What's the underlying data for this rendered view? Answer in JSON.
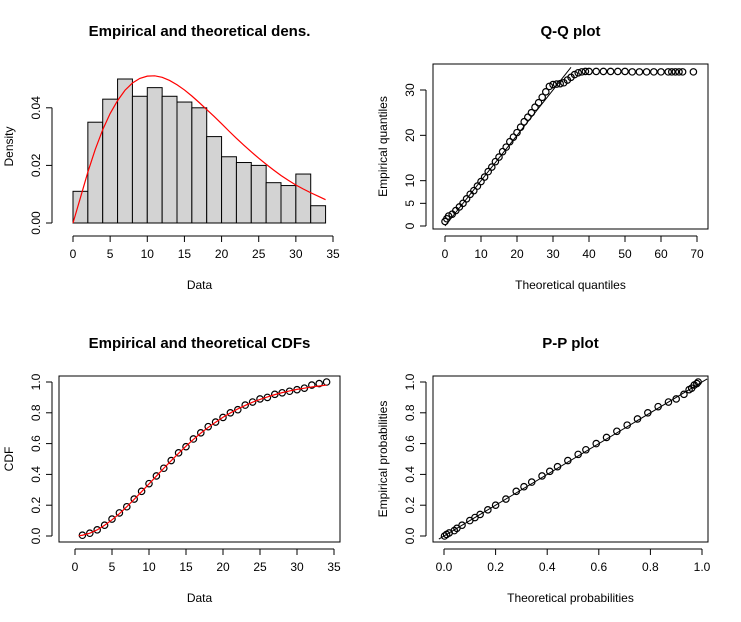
{
  "chart_data": [
    {
      "type": "bar",
      "title": "Empirical and theoretical dens.",
      "xlabel": "Data",
      "ylabel": "Density",
      "xlim": [
        0,
        35
      ],
      "ylim": [
        0,
        0.05
      ],
      "x_ticks": [
        0,
        5,
        10,
        15,
        20,
        25,
        30,
        35
      ],
      "y_ticks": [
        0.0,
        0.02,
        0.04
      ],
      "y_tick_labels": [
        "0.00",
        "0.02",
        "0.04"
      ],
      "bin_edges": [
        0,
        2,
        4,
        6,
        8,
        10,
        12,
        14,
        16,
        18,
        20,
        22,
        24,
        26,
        28,
        30,
        32,
        34
      ],
      "values": [
        0.011,
        0.035,
        0.043,
        0.05,
        0.044,
        0.047,
        0.044,
        0.042,
        0.04,
        0.03,
        0.023,
        0.021,
        0.02,
        0.014,
        0.013,
        0.017,
        0.006
      ],
      "bar_color": "#d3d3d3",
      "curve_color": "#ff0000",
      "curve": {
        "x": [
          0,
          1,
          2,
          3,
          4,
          5,
          6,
          7,
          8,
          9,
          10,
          11,
          12,
          13,
          14,
          15,
          16,
          17,
          18,
          19,
          20,
          21,
          22,
          23,
          24,
          25,
          26,
          27,
          28,
          29,
          30,
          31,
          32,
          33,
          34
        ],
        "y": [
          0.0,
          0.0088,
          0.0177,
          0.0256,
          0.0324,
          0.038,
          0.0425,
          0.0461,
          0.0486,
          0.0502,
          0.051,
          0.0511,
          0.0506,
          0.0495,
          0.048,
          0.0462,
          0.0441,
          0.0418,
          0.0394,
          0.037,
          0.0345,
          0.0319,
          0.0294,
          0.027,
          0.0247,
          0.0225,
          0.0204,
          0.0184,
          0.0165,
          0.0148,
          0.0132,
          0.0118,
          0.0105,
          0.0093,
          0.0081
        ]
      }
    },
    {
      "type": "scatter",
      "title": "Q-Q plot",
      "xlabel": "Theoretical quantiles",
      "ylabel": "Empirical quantiles",
      "xlim": [
        -2,
        72
      ],
      "ylim": [
        0,
        35
      ],
      "x_ticks": [
        0,
        10,
        20,
        30,
        40,
        50,
        60,
        70
      ],
      "y_ticks": [
        0,
        5,
        10,
        20,
        30
      ],
      "reference_line": [
        [
          0,
          0
        ],
        [
          35,
          35
        ]
      ],
      "points": [
        [
          0,
          1
        ],
        [
          0.5,
          1.6
        ],
        [
          1,
          2.2
        ],
        [
          2,
          2.6
        ],
        [
          3,
          3.4
        ],
        [
          4,
          4.2
        ],
        [
          5,
          5.0
        ],
        [
          6,
          6.0
        ],
        [
          7,
          7.0
        ],
        [
          8,
          7.8
        ],
        [
          9,
          8.8
        ],
        [
          10,
          9.8
        ],
        [
          11,
          10.8
        ],
        [
          12,
          12.0
        ],
        [
          13,
          13.0
        ],
        [
          14,
          14.2
        ],
        [
          15,
          15.2
        ],
        [
          16,
          16.4
        ],
        [
          17,
          17.4
        ],
        [
          18,
          18.6
        ],
        [
          19,
          19.6
        ],
        [
          20,
          20.6
        ],
        [
          21,
          21.8
        ],
        [
          22,
          23.0
        ],
        [
          23,
          24.0
        ],
        [
          24,
          25.0
        ],
        [
          25,
          26.2
        ],
        [
          26,
          27.2
        ],
        [
          27,
          28.4
        ],
        [
          28,
          29.6
        ],
        [
          29,
          30.8
        ],
        [
          30,
          31.2
        ],
        [
          31,
          31.3
        ],
        [
          32,
          31.4
        ],
        [
          33,
          31.6
        ],
        [
          34,
          32.2
        ],
        [
          35,
          32.8
        ],
        [
          36,
          33.4
        ],
        [
          37,
          33.8
        ],
        [
          38,
          34.0
        ],
        [
          39,
          34.1
        ],
        [
          40,
          34.1
        ],
        [
          42,
          34.1
        ],
        [
          44,
          34.1
        ],
        [
          46,
          34.1
        ],
        [
          48,
          34.1
        ],
        [
          50,
          34.1
        ],
        [
          52,
          34.0
        ],
        [
          54,
          34.0
        ],
        [
          56,
          34.0
        ],
        [
          58,
          34.0
        ],
        [
          60,
          34.0
        ],
        [
          62,
          34.0
        ],
        [
          63,
          34.0
        ],
        [
          64,
          34.0
        ],
        [
          65,
          34.0
        ],
        [
          66,
          34.0
        ],
        [
          69,
          34.0
        ]
      ]
    },
    {
      "type": "line",
      "title": "Empirical and theoretical CDFs",
      "xlabel": "Data",
      "ylabel": "CDF",
      "xlim": [
        0,
        35
      ],
      "ylim": [
        0,
        1
      ],
      "x_ticks": [
        0,
        5,
        10,
        15,
        20,
        25,
        30,
        35
      ],
      "y_ticks": [
        0.0,
        0.2,
        0.4,
        0.6,
        0.8,
        1.0
      ],
      "y_tick_labels": [
        "0.0",
        "0.2",
        "0.4",
        "0.6",
        "0.8",
        "1.0"
      ],
      "curve_color": "#ff0000",
      "theoretical": {
        "x": [
          0.5,
          1,
          2,
          3,
          4,
          5,
          6,
          7,
          8,
          9,
          10,
          11,
          12,
          13,
          14,
          15,
          16,
          17,
          18,
          19,
          20,
          21,
          22,
          23,
          24,
          25,
          26,
          27,
          28,
          29,
          30,
          31,
          32,
          33,
          34
        ],
        "y": [
          0.002,
          0.005,
          0.018,
          0.04,
          0.07,
          0.105,
          0.145,
          0.19,
          0.238,
          0.288,
          0.338,
          0.389,
          0.44,
          0.489,
          0.537,
          0.583,
          0.627,
          0.668,
          0.705,
          0.739,
          0.771,
          0.799,
          0.825,
          0.848,
          0.869,
          0.887,
          0.903,
          0.918,
          0.931,
          0.942,
          0.952,
          0.96,
          0.968,
          0.974,
          0.98
        ]
      },
      "empirical": {
        "x": [
          1,
          2,
          3,
          4,
          5,
          6,
          7,
          8,
          9,
          10,
          11,
          12,
          13,
          14,
          15,
          16,
          17,
          18,
          19,
          20,
          21,
          22,
          23,
          24,
          25,
          26,
          27,
          28,
          29,
          30,
          31,
          32,
          33,
          34
        ],
        "y": [
          0.005,
          0.018,
          0.04,
          0.07,
          0.11,
          0.15,
          0.19,
          0.24,
          0.29,
          0.34,
          0.39,
          0.44,
          0.49,
          0.54,
          0.58,
          0.63,
          0.67,
          0.71,
          0.74,
          0.77,
          0.8,
          0.82,
          0.85,
          0.87,
          0.89,
          0.9,
          0.92,
          0.93,
          0.94,
          0.95,
          0.96,
          0.98,
          0.99,
          1.0
        ]
      }
    },
    {
      "type": "scatter",
      "title": "P-P plot",
      "xlabel": "Theoretical probabilities",
      "ylabel": "Empirical probabilities",
      "xlim": [
        -0.02,
        1.02
      ],
      "ylim": [
        -0.02,
        1.02
      ],
      "x_ticks": [
        0.0,
        0.2,
        0.4,
        0.6,
        0.8,
        1.0
      ],
      "y_ticks": [
        0.0,
        0.2,
        0.4,
        0.6,
        0.8,
        1.0
      ],
      "tick_labels": [
        "0.0",
        "0.2",
        "0.4",
        "0.6",
        "0.8",
        "1.0"
      ],
      "reference_line": [
        [
          0,
          0
        ],
        [
          1,
          1
        ]
      ],
      "points": [
        [
          0.002,
          0.0
        ],
        [
          0.01,
          0.01
        ],
        [
          0.02,
          0.02
        ],
        [
          0.04,
          0.035
        ],
        [
          0.05,
          0.05
        ],
        [
          0.07,
          0.07
        ],
        [
          0.1,
          0.1
        ],
        [
          0.12,
          0.12
        ],
        [
          0.14,
          0.14
        ],
        [
          0.17,
          0.17
        ],
        [
          0.2,
          0.2
        ],
        [
          0.24,
          0.24
        ],
        [
          0.28,
          0.29
        ],
        [
          0.31,
          0.32
        ],
        [
          0.34,
          0.35
        ],
        [
          0.38,
          0.39
        ],
        [
          0.41,
          0.42
        ],
        [
          0.44,
          0.45
        ],
        [
          0.48,
          0.49
        ],
        [
          0.52,
          0.53
        ],
        [
          0.55,
          0.56
        ],
        [
          0.59,
          0.6
        ],
        [
          0.63,
          0.64
        ],
        [
          0.67,
          0.68
        ],
        [
          0.71,
          0.72
        ],
        [
          0.75,
          0.76
        ],
        [
          0.79,
          0.8
        ],
        [
          0.83,
          0.84
        ],
        [
          0.87,
          0.87
        ],
        [
          0.9,
          0.89
        ],
        [
          0.93,
          0.92
        ],
        [
          0.95,
          0.95
        ],
        [
          0.96,
          0.96
        ],
        [
          0.97,
          0.98
        ],
        [
          0.98,
          0.99
        ],
        [
          0.985,
          1.0
        ]
      ]
    }
  ]
}
